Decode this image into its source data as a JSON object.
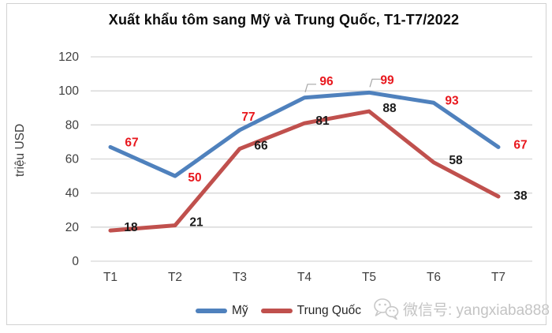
{
  "title": "Xuất khẩu tôm sang Mỹ và Trung Quốc, T1-T7/2022",
  "watermark": {
    "text": "微信号: yangxiaba888",
    "icon": "wechat-icon"
  },
  "colors": {
    "my_line": "#4f81bd",
    "trung_quoc_line": "#c0504d",
    "my_label": "#e8171d",
    "trung_quoc_label": "#1a1a1a",
    "gridline": "#d6d6d6",
    "tick_text": "#3f3f3f",
    "leader_line": "#a6a6a6",
    "watermark_gray": "#c4c4c4"
  },
  "chart_data": {
    "type": "line",
    "title": "Xuất khẩu tôm sang Mỹ và Trung Quốc, T1-T7/2022",
    "categories": [
      "T1",
      "T2",
      "T3",
      "T4",
      "T5",
      "T6",
      "T7"
    ],
    "series": [
      {
        "name": "Mỹ",
        "values": [
          67,
          50,
          77,
          96,
          99,
          93,
          67
        ],
        "color": "#4f81bd",
        "label_color": "#e8171d"
      },
      {
        "name": "Trung Quốc",
        "values": [
          18,
          21,
          66,
          81,
          88,
          58,
          38
        ],
        "color": "#c0504d",
        "label_color": "#1a1a1a"
      }
    ],
    "xlabel": "",
    "ylabel": "triệu USD",
    "yticks": [
      0,
      20,
      40,
      60,
      80,
      100,
      120
    ],
    "ylim": [
      0,
      120
    ],
    "grid": true,
    "data_labels": true,
    "legend_position": "bottom"
  }
}
